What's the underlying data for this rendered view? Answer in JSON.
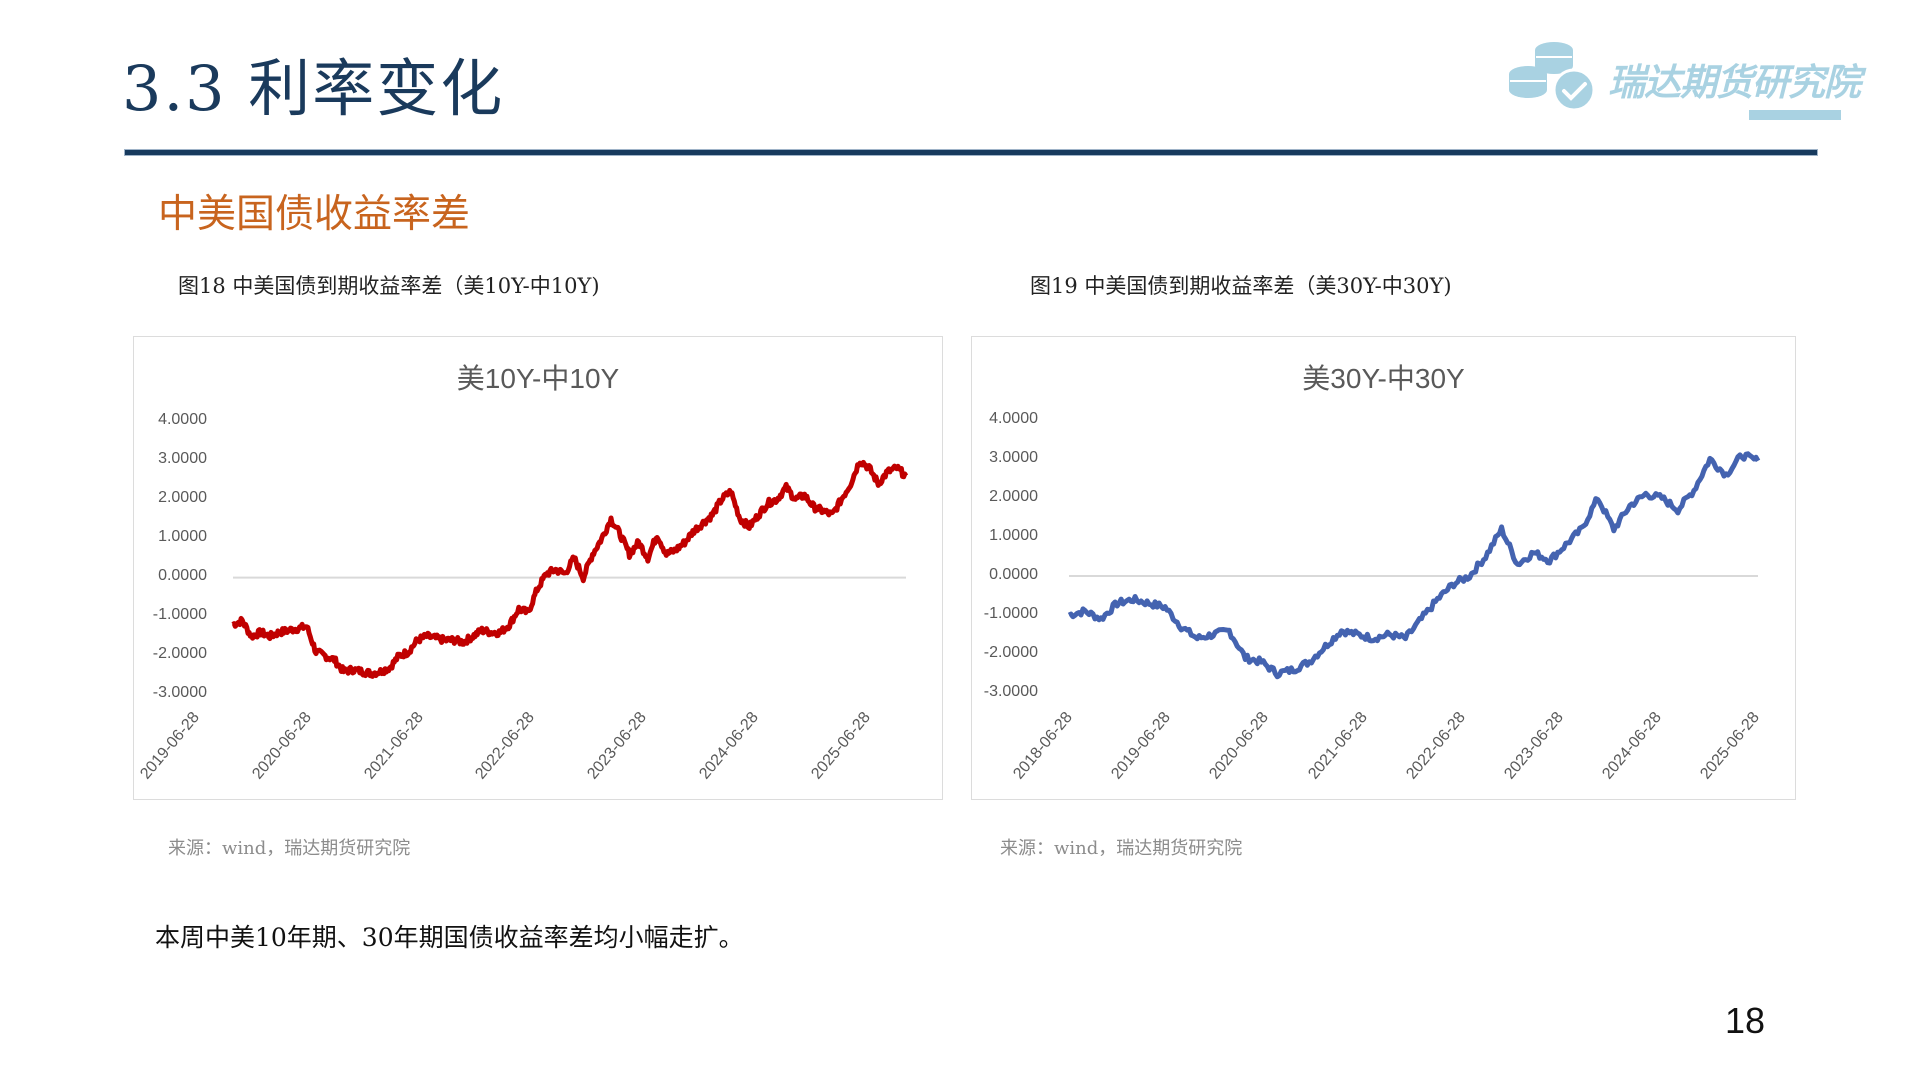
{
  "header": {
    "title": "3.3 利率变化",
    "logo_text": "瑞达期货研究院",
    "logo_color": "#a9d2e2",
    "title_color": "#1a3a5c"
  },
  "section": {
    "subtitle": "中美国债收益率差",
    "subtitle_color": "#c8641e"
  },
  "figures": [
    {
      "caption": "图18  中美国债到期收益率差（美10Y-中10Y)",
      "source": "来源：wind，瑞达期货研究院"
    },
    {
      "caption": "图19  中美国债到期收益率差（美30Y-中30Y)",
      "source": "来源：wind，瑞达期货研究院"
    }
  ],
  "summary": "本周中美10年期、30年期国债收益率差均小幅走扩。",
  "page_number": "18",
  "chart_data": [
    {
      "type": "line",
      "title": "美10Y-中10Y",
      "xlabel": "",
      "ylabel": "",
      "ylim": [
        -3,
        4
      ],
      "yticks": [
        "4.0000",
        "3.0000",
        "2.0000",
        "1.0000",
        "0.0000",
        "-1.0000",
        "-2.0000",
        "-3.0000"
      ],
      "xticks": [
        "2019-06-28",
        "2020-06-28",
        "2021-06-28",
        "2022-06-28",
        "2023-06-28",
        "2024-06-28",
        "2025-06-28"
      ],
      "grid": "zero line only",
      "legend": "none",
      "color": "#c00000",
      "series": [
        {
          "name": "美10Y-中10Y",
          "x": [
            "2019-06",
            "2019-07",
            "2019-08",
            "2019-09",
            "2019-10",
            "2019-11",
            "2019-12",
            "2020-01",
            "2020-02",
            "2020-03",
            "2020-04",
            "2020-05",
            "2020-06",
            "2020-07",
            "2020-08",
            "2020-09",
            "2020-10",
            "2020-11",
            "2020-12",
            "2021-01",
            "2021-02",
            "2021-03",
            "2021-04",
            "2021-05",
            "2021-06",
            "2021-07",
            "2021-08",
            "2021-09",
            "2021-10",
            "2021-11",
            "2021-12",
            "2022-01",
            "2022-02",
            "2022-03",
            "2022-04",
            "2022-05",
            "2022-06",
            "2022-07",
            "2022-08",
            "2022-09",
            "2022-10",
            "2022-11",
            "2022-12",
            "2023-01",
            "2023-02",
            "2023-03",
            "2023-04",
            "2023-05",
            "2023-06",
            "2023-07",
            "2023-08",
            "2023-09",
            "2023-10",
            "2023-11",
            "2023-12",
            "2024-01",
            "2024-02",
            "2024-03",
            "2024-04",
            "2024-05",
            "2024-06",
            "2024-07",
            "2024-08",
            "2024-09",
            "2024-10",
            "2024-11",
            "2024-12",
            "2025-01",
            "2025-02",
            "2025-03",
            "2025-04",
            "2025-05",
            "2025-06",
            "2025-07"
          ],
          "values": [
            -1.2,
            -1.1,
            -1.5,
            -1.4,
            -1.5,
            -1.4,
            -1.35,
            -1.3,
            -1.25,
            -1.9,
            -2.0,
            -2.1,
            -2.4,
            -2.35,
            -2.4,
            -2.45,
            -2.4,
            -2.3,
            -2.0,
            -1.9,
            -1.6,
            -1.5,
            -1.55,
            -1.6,
            -1.6,
            -1.65,
            -1.5,
            -1.35,
            -1.4,
            -1.4,
            -1.2,
            -0.8,
            -0.9,
            -0.3,
            0.1,
            0.2,
            0.1,
            0.5,
            0.0,
            0.6,
            1.0,
            1.5,
            1.1,
            0.6,
            0.9,
            0.5,
            1.1,
            0.6,
            0.7,
            0.9,
            1.2,
            1.4,
            1.6,
            2.0,
            2.2,
            1.5,
            1.3,
            1.6,
            1.9,
            2.0,
            2.3,
            2.0,
            2.1,
            1.8,
            1.7,
            1.6,
            2.0,
            2.4,
            3.0,
            2.8,
            2.4,
            2.7,
            2.8,
            2.6
          ]
        }
      ]
    },
    {
      "type": "line",
      "title": "美30Y-中30Y",
      "xlabel": "",
      "ylabel": "",
      "ylim": [
        -3,
        4
      ],
      "yticks": [
        "4.0000",
        "3.0000",
        "2.0000",
        "1.0000",
        "0.0000",
        "-1.0000",
        "-2.0000",
        "-3.0000"
      ],
      "xticks": [
        "2018-06-28",
        "2019-06-28",
        "2020-06-28",
        "2021-06-28",
        "2022-06-28",
        "2023-06-28",
        "2024-06-28",
        "2025-06-28"
      ],
      "grid": "zero line only",
      "legend": "none",
      "color": "#4463b0",
      "series": [
        {
          "name": "美30Y-中30Y",
          "x": [
            "2018-06",
            "2018-08",
            "2018-10",
            "2018-12",
            "2019-02",
            "2019-04",
            "2019-06",
            "2019-08",
            "2019-10",
            "2019-12",
            "2020-02",
            "2020-04",
            "2020-06",
            "2020-08",
            "2020-10",
            "2020-12",
            "2021-02",
            "2021-04",
            "2021-06",
            "2021-08",
            "2021-10",
            "2021-12",
            "2022-02",
            "2022-04",
            "2022-06",
            "2022-08",
            "2022-10",
            "2022-12",
            "2023-02",
            "2023-04",
            "2023-06",
            "2023-08",
            "2023-10",
            "2023-12",
            "2024-02",
            "2024-04",
            "2024-06",
            "2024-08",
            "2024-10",
            "2024-12",
            "2025-02",
            "2025-04",
            "2025-06",
            "2025-07"
          ],
          "values": [
            -1.0,
            -0.9,
            -1.1,
            -0.7,
            -0.6,
            -0.7,
            -0.8,
            -1.3,
            -1.6,
            -1.5,
            -1.4,
            -2.1,
            -2.2,
            -2.5,
            -2.4,
            -2.2,
            -1.8,
            -1.4,
            -1.5,
            -1.6,
            -1.5,
            -1.6,
            -1.1,
            -0.6,
            -0.2,
            0.0,
            0.5,
            1.2,
            0.3,
            0.6,
            0.4,
            0.8,
            1.2,
            2.0,
            1.2,
            1.8,
            2.1,
            2.0,
            1.7,
            2.2,
            3.0,
            2.6,
            3.1,
            2.95
          ]
        }
      ]
    }
  ]
}
